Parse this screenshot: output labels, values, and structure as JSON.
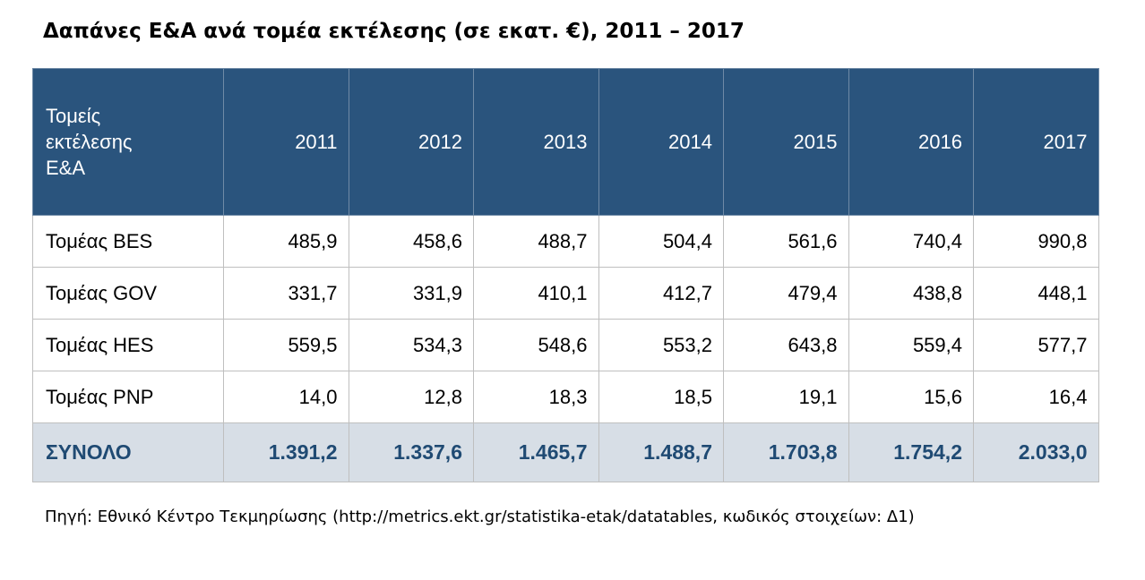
{
  "title": "Δαπάνες Ε&Α ανά τομέα εκτέλεσης (σε εκατ. €), 2011 – 2017",
  "source": "Πηγή: Εθνικό Κέντρο Τεκμηρίωσης (http://metrics.ekt.gr/statistika-etak/datatables, κωδικός στοιχείων: Δ1)",
  "colors": {
    "header_bg": "#2a547d",
    "total_bg": "#d7dee6",
    "total_text": "#1f4a73"
  },
  "chart_data": {
    "type": "table",
    "title": "Δαπάνες Ε&Α ανά τομέα εκτέλεσης (σε εκατ. €), 2011 – 2017",
    "header_lines": [
      "Τομείς",
      "εκτέλεσης",
      "Ε&Α"
    ],
    "years": [
      "2011",
      "2012",
      "2013",
      "2014",
      "2015",
      "2016",
      "2017"
    ],
    "rows": [
      {
        "label": "Τομέας BES",
        "values": [
          "485,9",
          "458,6",
          "488,7",
          "504,4",
          "561,6",
          "740,4",
          "990,8"
        ]
      },
      {
        "label": "Τομέας GOV",
        "values": [
          "331,7",
          "331,9",
          "410,1",
          "412,7",
          "479,4",
          "438,8",
          "448,1"
        ]
      },
      {
        "label": "Τομέας HES",
        "values": [
          "559,5",
          "534,3",
          "548,6",
          "553,2",
          "643,8",
          "559,4",
          "577,7"
        ]
      },
      {
        "label": "Τομέας PNP",
        "values": [
          "14,0",
          "12,8",
          "18,3",
          "18,5",
          "19,1",
          "15,6",
          "16,4"
        ]
      }
    ],
    "total": {
      "label": "ΣΥΝΟΛΟ",
      "values": [
        "1.391,2",
        "1.337,6",
        "1.465,7",
        "1.488,7",
        "1.703,8",
        "1.754,2",
        "2.033,0"
      ]
    }
  }
}
